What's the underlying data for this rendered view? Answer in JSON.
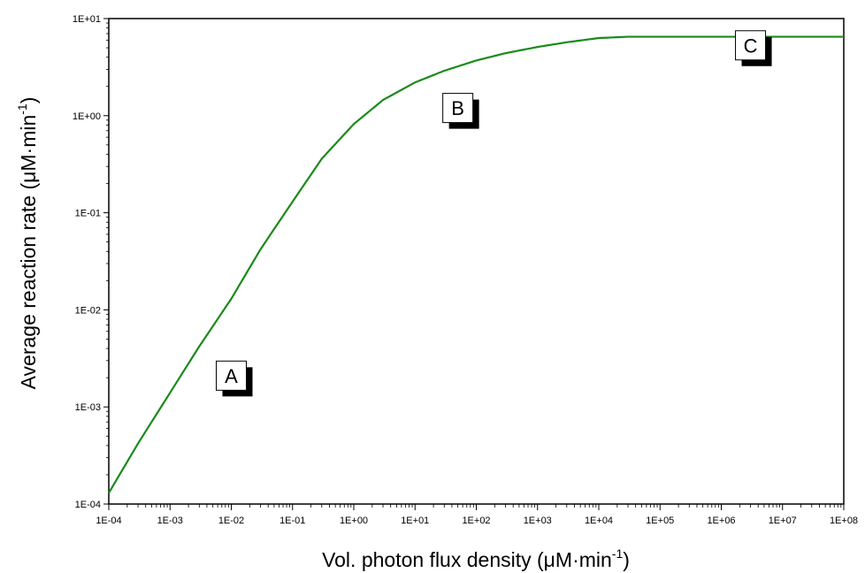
{
  "chart_data": {
    "type": "line",
    "xlabel": "Vol. photon flux density (μM·min",
    "xlabel_sup": "-1",
    "xlabel_close": ")",
    "ylabel": "Average reaction rate (μM·min",
    "ylabel_sup": "-1",
    "ylabel_close": ")",
    "x_scale": "log",
    "y_scale": "log",
    "xlim": [
      0.0001,
      100000000
    ],
    "ylim": [
      0.0001,
      10
    ],
    "x_ticks": [
      {
        "value": 0.0001,
        "label": "1E-04"
      },
      {
        "value": 0.001,
        "label": "1E-03"
      },
      {
        "value": 0.01,
        "label": "1E-02"
      },
      {
        "value": 0.1,
        "label": "1E-01"
      },
      {
        "value": 1,
        "label": "1E+00"
      },
      {
        "value": 10,
        "label": "1E+01"
      },
      {
        "value": 100,
        "label": "1E+02"
      },
      {
        "value": 1000,
        "label": "1E+03"
      },
      {
        "value": 10000,
        "label": "1E+04"
      },
      {
        "value": 100000,
        "label": "1E+05"
      },
      {
        "value": 1000000,
        "label": "1E+06"
      },
      {
        "value": 10000000,
        "label": "1E+07"
      },
      {
        "value": 100000000,
        "label": "1E+08"
      }
    ],
    "y_ticks": [
      {
        "value": 0.0001,
        "label": "1E-04"
      },
      {
        "value": 0.001,
        "label": "1E-03"
      },
      {
        "value": 0.01,
        "label": "1E-02"
      },
      {
        "value": 0.1,
        "label": "1E-01"
      },
      {
        "value": 1,
        "label": "1E+00"
      },
      {
        "value": 10,
        "label": "1E+01"
      }
    ],
    "grid": false,
    "line_color": "#1a8a1a",
    "series": [
      {
        "x": [
          0.0001,
          0.0003,
          0.001,
          0.003,
          0.01,
          0.03,
          0.1,
          0.3,
          1,
          3,
          10,
          30,
          100,
          300,
          1000,
          3000,
          10000,
          30000,
          100000,
          1000000,
          10000000,
          100000000
        ],
        "y": [
          0.00013,
          0.00042,
          0.0014,
          0.0042,
          0.013,
          0.042,
          0.13,
          0.36,
          0.82,
          1.45,
          2.2,
          2.9,
          3.7,
          4.4,
          5.1,
          5.7,
          6.3,
          6.5,
          6.5,
          6.5,
          6.5,
          6.5
        ]
      }
    ],
    "annotations": [
      {
        "text": "A",
        "x": 0.01,
        "y": 0.0021
      },
      {
        "text": "B",
        "x": 50,
        "y": 1.2
      },
      {
        "text": "C",
        "x": 3000000,
        "y": 5.3
      }
    ]
  }
}
